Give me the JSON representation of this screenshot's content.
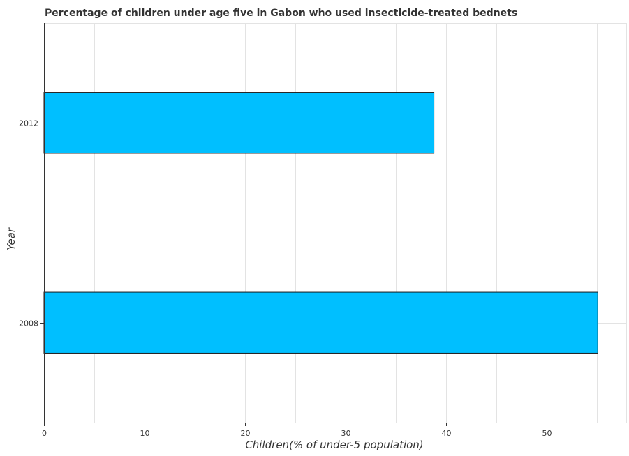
{
  "chart_data": {
    "type": "bar",
    "orientation": "horizontal",
    "title": "Percentage of children under age five in Gabon who used insecticide-treated bednets",
    "xlabel": "Children(% of under-5 population)",
    "ylabel": "Year",
    "categories": [
      "2008",
      "2012"
    ],
    "values": [
      55.1,
      38.8
    ],
    "xlim": [
      0,
      58
    ],
    "xticks": [
      0,
      10,
      20,
      30,
      40,
      50
    ],
    "xtick_labels": [
      "0",
      "10",
      "20",
      "30",
      "40",
      "50"
    ],
    "grid": true,
    "bar_color": "#00bfff"
  }
}
